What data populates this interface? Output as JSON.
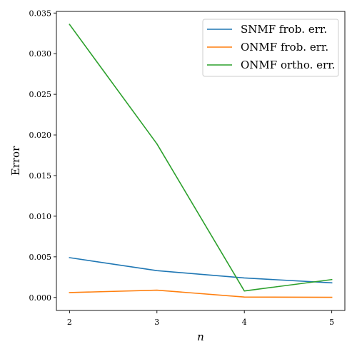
{
  "chart_data": {
    "type": "line",
    "title": "",
    "xlabel": "n",
    "ylabel": "Error",
    "x": [
      2,
      3,
      4,
      5
    ],
    "xlim": [
      1.85,
      5.15
    ],
    "ylim": [
      -0.0016,
      0.0352
    ],
    "xticks": [
      2,
      3,
      4,
      5
    ],
    "yticks": [
      0.0,
      0.005,
      0.01,
      0.015,
      0.02,
      0.025,
      0.03,
      0.035
    ],
    "ytick_labels": [
      "0.000",
      "0.005",
      "0.010",
      "0.015",
      "0.020",
      "0.025",
      "0.030",
      "0.035"
    ],
    "grid": false,
    "legend_position": "top-right",
    "series": [
      {
        "name": "SNMF frob. err.",
        "color": "#1f77b4",
        "values": [
          0.0049,
          0.0033,
          0.0024,
          0.0018
        ]
      },
      {
        "name": "ONMF frob. err.",
        "color": "#ff7f0e",
        "values": [
          0.0006,
          0.0009,
          5e-05,
          2e-05
        ]
      },
      {
        "name": "ONMF ortho. err.",
        "color": "#2ca02c",
        "values": [
          0.0336,
          0.0189,
          0.0008,
          0.0022
        ]
      }
    ]
  }
}
